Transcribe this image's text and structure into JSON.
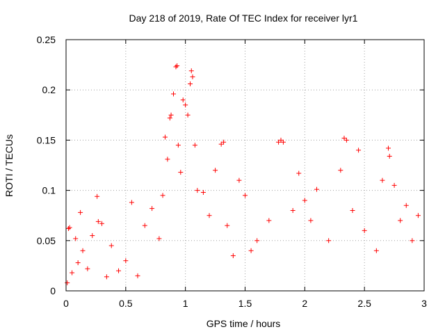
{
  "chart_data": {
    "type": "scatter",
    "title": "Day 218 of 2019, Rate Of TEC Index for receiver lyr1",
    "xlabel": "GPS time / hours",
    "ylabel": "ROTI / TECUs",
    "xlim": [
      0,
      3
    ],
    "ylim": [
      0,
      0.25
    ],
    "x_ticks": [
      0,
      0.5,
      1,
      1.5,
      2,
      2.5,
      3
    ],
    "x_tick_labels": [
      "0",
      "0.5",
      "1",
      "1.5",
      "2",
      "2.5",
      "3"
    ],
    "y_ticks": [
      0,
      0.05,
      0.1,
      0.15,
      0.2,
      0.25
    ],
    "y_tick_labels": [
      "0",
      "0.05",
      "0.1",
      "0.15",
      "0.2",
      "0.25"
    ],
    "grid": true,
    "marker": "plus",
    "color": "#ff0000",
    "series": [
      {
        "name": "ROTI",
        "points": [
          [
            0.01,
            0.008
          ],
          [
            0.02,
            0.062
          ],
          [
            0.03,
            0.063
          ],
          [
            0.05,
            0.018
          ],
          [
            0.08,
            0.052
          ],
          [
            0.1,
            0.028
          ],
          [
            0.12,
            0.078
          ],
          [
            0.14,
            0.04
          ],
          [
            0.18,
            0.022
          ],
          [
            0.22,
            0.055
          ],
          [
            0.26,
            0.094
          ],
          [
            0.27,
            0.069
          ],
          [
            0.3,
            0.067
          ],
          [
            0.34,
            0.014
          ],
          [
            0.38,
            0.045
          ],
          [
            0.44,
            0.02
          ],
          [
            0.5,
            0.03
          ],
          [
            0.55,
            0.088
          ],
          [
            0.6,
            0.015
          ],
          [
            0.66,
            0.065
          ],
          [
            0.72,
            0.082
          ],
          [
            0.78,
            0.052
          ],
          [
            0.81,
            0.095
          ],
          [
            0.83,
            0.153
          ],
          [
            0.85,
            0.131
          ],
          [
            0.87,
            0.172
          ],
          [
            0.88,
            0.175
          ],
          [
            0.9,
            0.196
          ],
          [
            0.92,
            0.223
          ],
          [
            0.93,
            0.224
          ],
          [
            0.94,
            0.145
          ],
          [
            0.96,
            0.118
          ],
          [
            0.98,
            0.19
          ],
          [
            1.0,
            0.185
          ],
          [
            1.02,
            0.175
          ],
          [
            1.04,
            0.206
          ],
          [
            1.05,
            0.219
          ],
          [
            1.06,
            0.213
          ],
          [
            1.08,
            0.145
          ],
          [
            1.1,
            0.1
          ],
          [
            1.15,
            0.098
          ],
          [
            1.2,
            0.075
          ],
          [
            1.25,
            0.12
          ],
          [
            1.3,
            0.146
          ],
          [
            1.32,
            0.148
          ],
          [
            1.35,
            0.065
          ],
          [
            1.4,
            0.035
          ],
          [
            1.45,
            0.11
          ],
          [
            1.5,
            0.095
          ],
          [
            1.55,
            0.04
          ],
          [
            1.6,
            0.05
          ],
          [
            1.7,
            0.07
          ],
          [
            1.78,
            0.148
          ],
          [
            1.8,
            0.15
          ],
          [
            1.82,
            0.148
          ],
          [
            1.9,
            0.08
          ],
          [
            1.95,
            0.117
          ],
          [
            2.0,
            0.09
          ],
          [
            2.05,
            0.07
          ],
          [
            2.1,
            0.101
          ],
          [
            2.2,
            0.05
          ],
          [
            2.3,
            0.12
          ],
          [
            2.33,
            0.152
          ],
          [
            2.35,
            0.15
          ],
          [
            2.4,
            0.08
          ],
          [
            2.45,
            0.14
          ],
          [
            2.5,
            0.06
          ],
          [
            2.6,
            0.04
          ],
          [
            2.65,
            0.11
          ],
          [
            2.7,
            0.142
          ],
          [
            2.71,
            0.134
          ],
          [
            2.75,
            0.105
          ],
          [
            2.8,
            0.07
          ],
          [
            2.85,
            0.085
          ],
          [
            2.9,
            0.05
          ],
          [
            2.95,
            0.075
          ]
        ]
      }
    ]
  }
}
